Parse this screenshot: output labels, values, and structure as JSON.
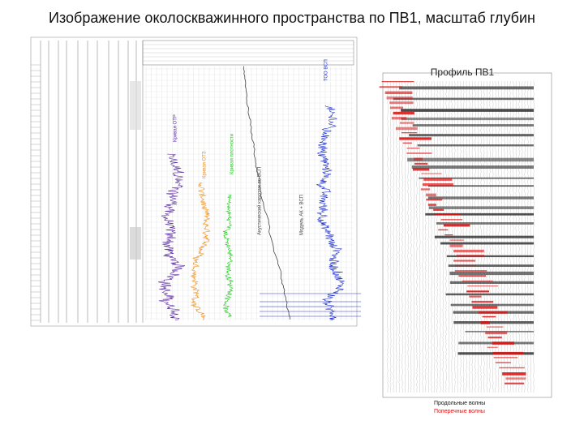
{
  "header": {
    "title": "Изображение околоскважинного пространства по ПВ1, масштаб глубин"
  },
  "log_panel": {
    "curve_labels": [
      {
        "label": "Кривая ОТР",
        "color": "#5b2ca0"
      },
      {
        "label": "Кривая ОТЗ",
        "color": "#f0901e"
      },
      {
        "label": "Кривая плотности",
        "color": "#22cc22"
      },
      {
        "label": "Акустический каротаж по ВСП",
        "color": "#444444"
      },
      {
        "label": "Модель АК + ВСП",
        "color": "#444444"
      },
      {
        "label": "ТОО ВСП",
        "color": "#2233cc"
      }
    ]
  },
  "profile_panel": {
    "title": "Профиль ПВ1",
    "legend": [
      {
        "label": "Продольные волны",
        "color": "#111111"
      },
      {
        "label": "Поперечные волны",
        "color": "#dd1111"
      }
    ]
  }
}
